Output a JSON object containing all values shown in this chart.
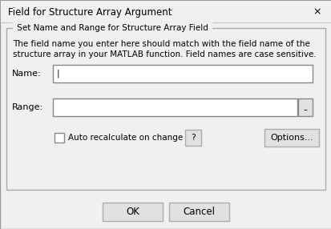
{
  "title": "Field for Structure Array Argument",
  "close_symbol": "×",
  "group_label": "Set Name and Range for Structure Array Field",
  "description_line1": "The field name you enter here should match with the field name of the",
  "description_line2": "structure array in your MATLAB function. Field names are case sensitive.",
  "name_label": "Name:",
  "range_label": "Range:",
  "checkbox_label": "Auto recalculate on change",
  "question_btn": "?",
  "options_btn": "Options...",
  "ok_btn": "OK",
  "cancel_btn": "Cancel",
  "bg_color": "#f0f0f0",
  "text_color": "#000000",
  "group_border": "#aaaaaa",
  "input_bg": "#ffffff",
  "btn_bg": "#e1e1e1",
  "btn_border": "#adadad",
  "separator_color": "#c8c8c8",
  "dialog_border": "#999999"
}
